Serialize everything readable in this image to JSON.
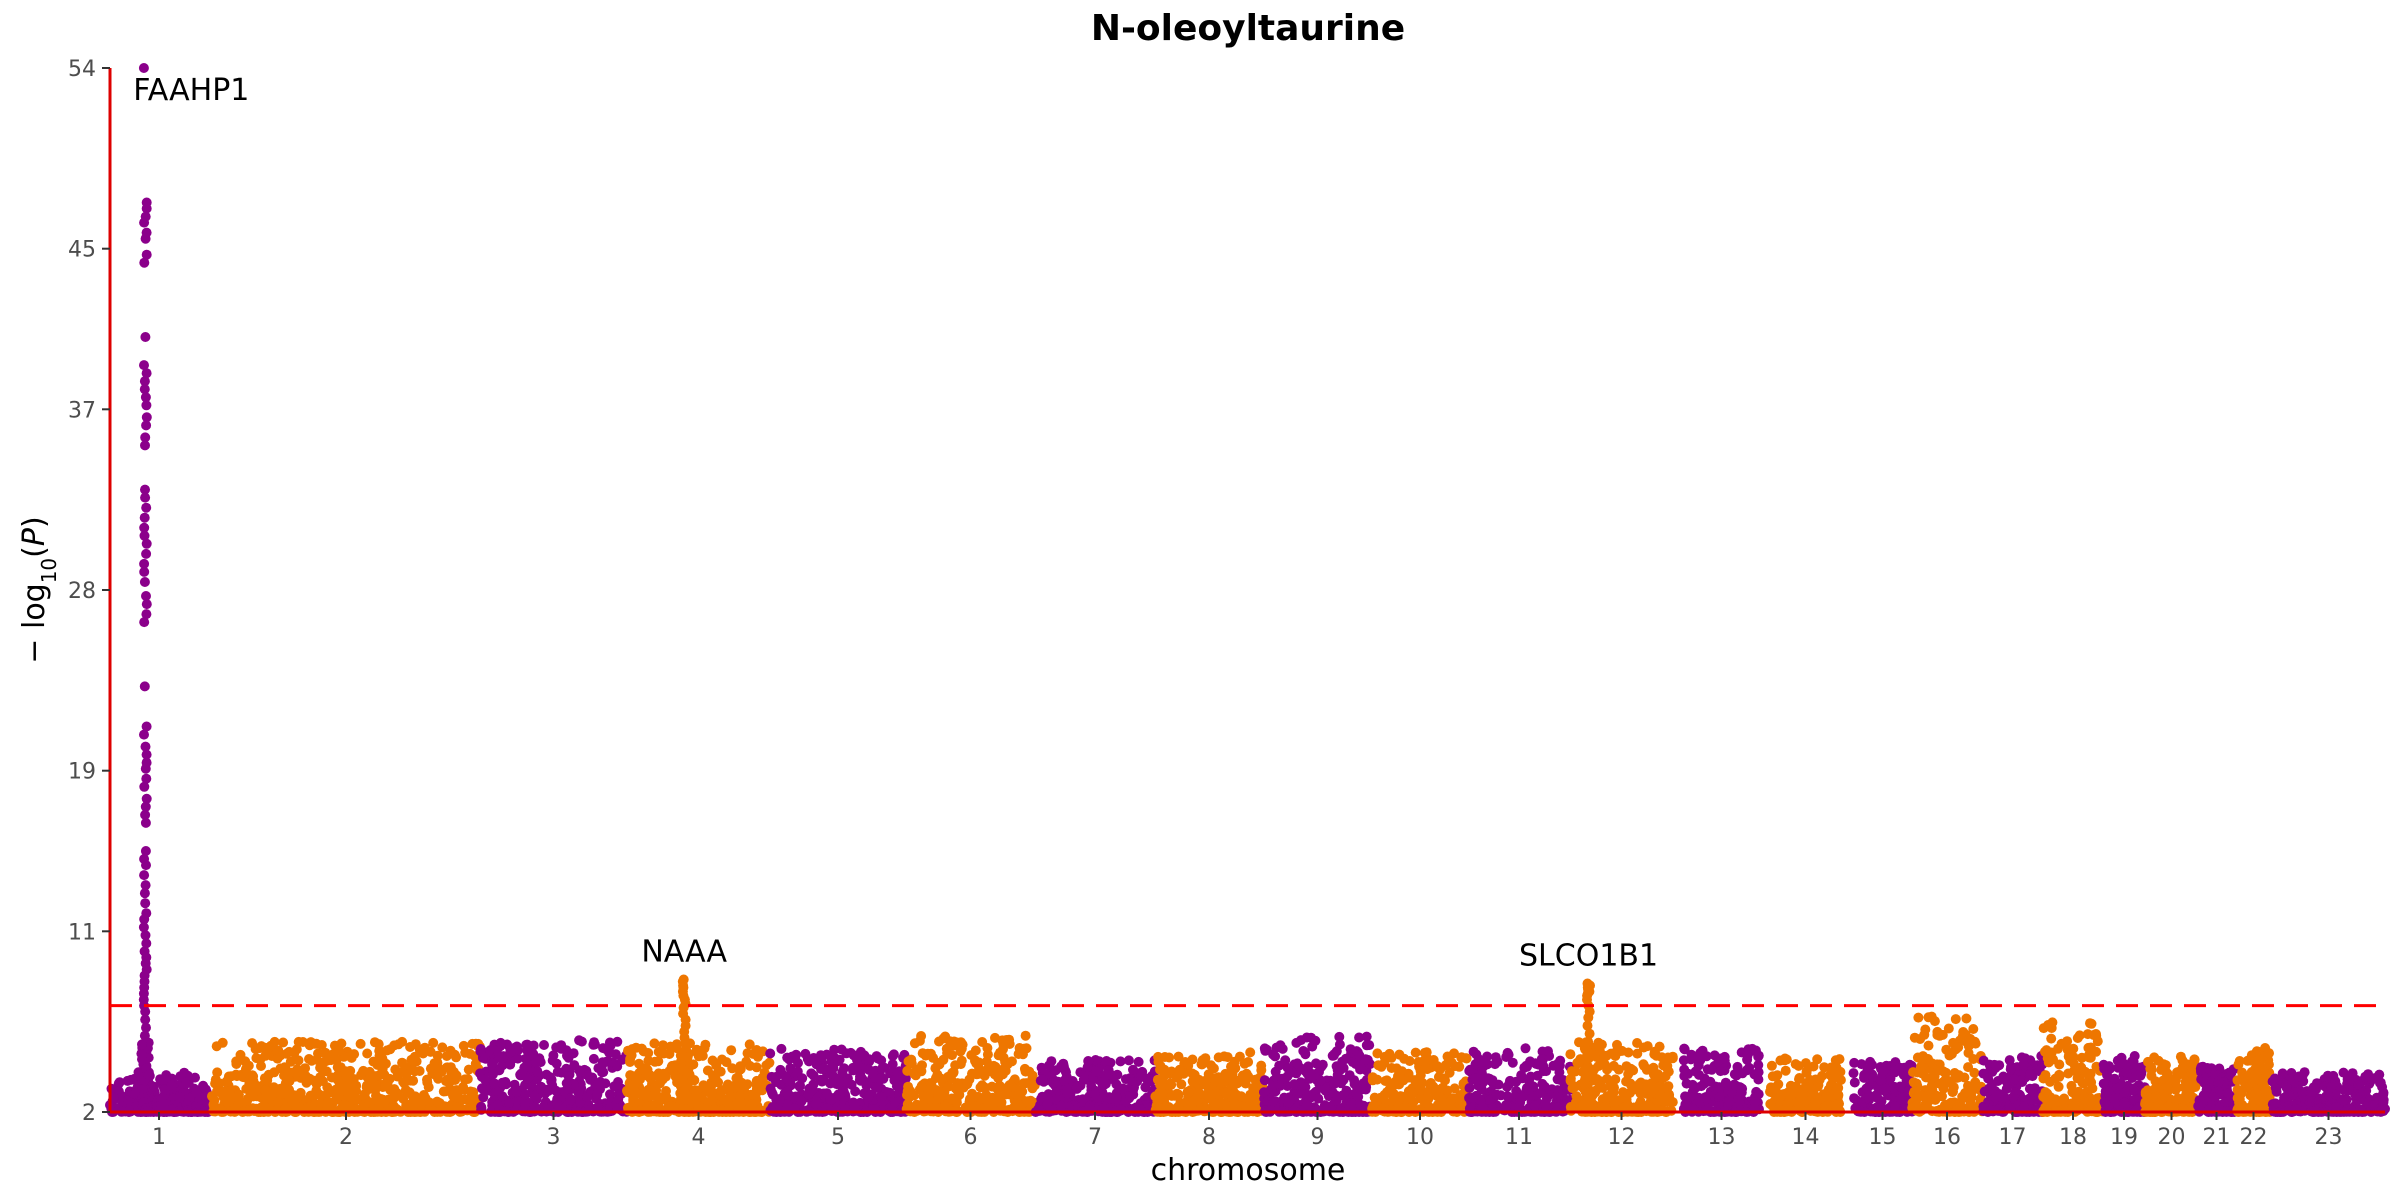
{
  "chart_data": {
    "type": "scatter",
    "subtype": "manhattan",
    "title": "N-oleoyltaurine",
    "xlabel": "chromosome",
    "ylabel": "−log10(P)",
    "ylim": [
      2,
      54
    ],
    "yticks": [
      "2",
      "11",
      "19",
      "28",
      "37",
      "45",
      "54"
    ],
    "xticks": [
      "1",
      "2",
      "3",
      "4",
      "5",
      "6",
      "7",
      "8",
      "9",
      "10",
      "11",
      "12",
      "13",
      "14",
      "15",
      "16",
      "17",
      "18",
      "19",
      "20",
      "21",
      "22",
      "23"
    ],
    "significance_threshold": 7.3,
    "grid": false,
    "colors": {
      "odd": "#8B008B",
      "even": "#EE7600",
      "axis": "#DD0000",
      "threshold": "#FF0000"
    },
    "chromosomes": [
      {
        "chr": "1",
        "color": "odd",
        "background_max": 4.0
      },
      {
        "chr": "2",
        "color": "even",
        "background_max": 5.5
      },
      {
        "chr": "3",
        "color": "odd",
        "background_max": 5.6
      },
      {
        "chr": "4",
        "color": "even",
        "background_max": 5.5
      },
      {
        "chr": "5",
        "color": "odd",
        "background_max": 5.2
      },
      {
        "chr": "6",
        "color": "even",
        "background_max": 5.8
      },
      {
        "chr": "7",
        "color": "odd",
        "background_max": 4.6
      },
      {
        "chr": "8",
        "color": "even",
        "background_max": 5.0
      },
      {
        "chr": "9",
        "color": "odd",
        "background_max": 5.8
      },
      {
        "chr": "10",
        "color": "even",
        "background_max": 5.0
      },
      {
        "chr": "11",
        "color": "odd",
        "background_max": 5.2
      },
      {
        "chr": "12",
        "color": "even",
        "background_max": 5.5
      },
      {
        "chr": "13",
        "color": "odd",
        "background_max": 5.2
      },
      {
        "chr": "14",
        "color": "even",
        "background_max": 4.7
      },
      {
        "chr": "15",
        "color": "odd",
        "background_max": 4.5
      },
      {
        "chr": "16",
        "color": "even",
        "background_max": 6.8
      },
      {
        "chr": "17",
        "color": "odd",
        "background_max": 4.8
      },
      {
        "chr": "18",
        "color": "even",
        "background_max": 6.5
      },
      {
        "chr": "19",
        "color": "odd",
        "background_max": 4.8
      },
      {
        "chr": "20",
        "color": "even",
        "background_max": 4.8
      },
      {
        "chr": "21",
        "color": "odd",
        "background_max": 4.3
      },
      {
        "chr": "22",
        "color": "even",
        "background_max": 5.2
      },
      {
        "chr": "23",
        "color": "odd",
        "background_max": 4.0
      }
    ],
    "peaks": [
      {
        "chr": "1",
        "color": "odd",
        "position": 0.36,
        "values": [
          54.0,
          47.3,
          47.0,
          46.6,
          46.3,
          45.8,
          45.5,
          44.7,
          44.3,
          40.6,
          39.2,
          38.8,
          38.4,
          38.0,
          37.6,
          37.2,
          36.6,
          36.2,
          35.6,
          35.2,
          33.0,
          32.6,
          32.1,
          31.6,
          31.1,
          30.7,
          30.3,
          29.8,
          29.3,
          28.9,
          28.4,
          27.7,
          27.3,
          26.8,
          26.4,
          23.2,
          21.2,
          20.8,
          20.2,
          19.8,
          19.4,
          19.1,
          18.6,
          18.2,
          17.6,
          17.2,
          16.8,
          16.4,
          15.0,
          14.6,
          14.3,
          13.8,
          13.3,
          12.9,
          12.4,
          11.9,
          11.6,
          11.2,
          10.8,
          10.4,
          10.0,
          9.7,
          9.4,
          9.1,
          8.8,
          8.5,
          8.2,
          7.9,
          7.6,
          7.3,
          7.0,
          6.6,
          6.2,
          5.8,
          5.4,
          5.0,
          4.6,
          4.2,
          3.8
        ]
      },
      {
        "chr": "4",
        "color": "even",
        "position": 0.4,
        "values": [
          8.6,
          8.5,
          8.3,
          8.2,
          8.0,
          7.8,
          7.6,
          7.4,
          7.2,
          6.9,
          6.6,
          6.3,
          6.0,
          5.7,
          5.4,
          5.0,
          4.6,
          4.2
        ]
      },
      {
        "chr": "12",
        "color": "even",
        "position": 0.18,
        "values": [
          8.4,
          8.3,
          8.2,
          8.1,
          8.0,
          7.9,
          7.8,
          7.6,
          7.3,
          7.0,
          6.7,
          6.3,
          5.9,
          5.5,
          5.1,
          4.7,
          4.3
        ]
      }
    ],
    "annotations": [
      {
        "text": "FAAHP1",
        "chr": "1",
        "y": 54.0
      },
      {
        "text": "NAAA",
        "chr": "4",
        "y": 8.6
      },
      {
        "text": "SLCO1B1",
        "chr": "12",
        "y": 8.4
      }
    ]
  }
}
